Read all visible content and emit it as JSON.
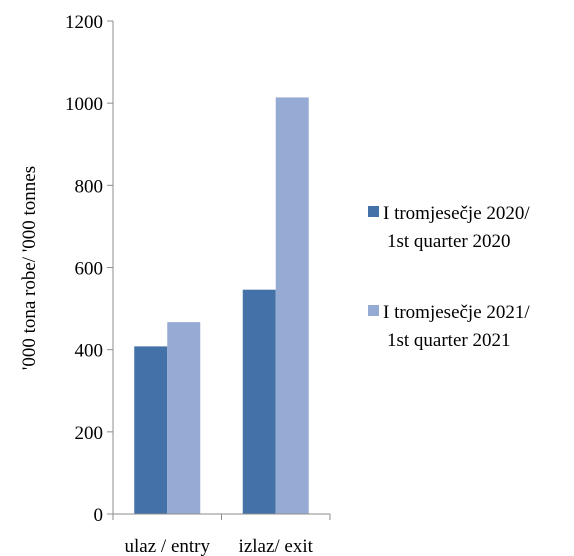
{
  "chart_data": {
    "type": "bar",
    "title": "",
    "xlabel": "",
    "ylabel": "'000 tona robe/ '000 tonnes",
    "categories": [
      "ulaz / entry",
      "izlaz/ exit"
    ],
    "series": [
      {
        "name": [
          "I tromjesečje 2020/",
          "1st quarter 2020"
        ],
        "values": [
          408,
          546
        ],
        "color": "#4472a8"
      },
      {
        "name": [
          "I tromjesečje 2021/",
          "1st quarter 2021"
        ],
        "values": [
          467,
          1014
        ],
        "color": "#96abd3"
      }
    ],
    "ylim": [
      0,
      1200
    ],
    "yticks": [
      0,
      200,
      400,
      600,
      800,
      1000,
      1200
    ],
    "grid": false,
    "legend_position": "right"
  }
}
